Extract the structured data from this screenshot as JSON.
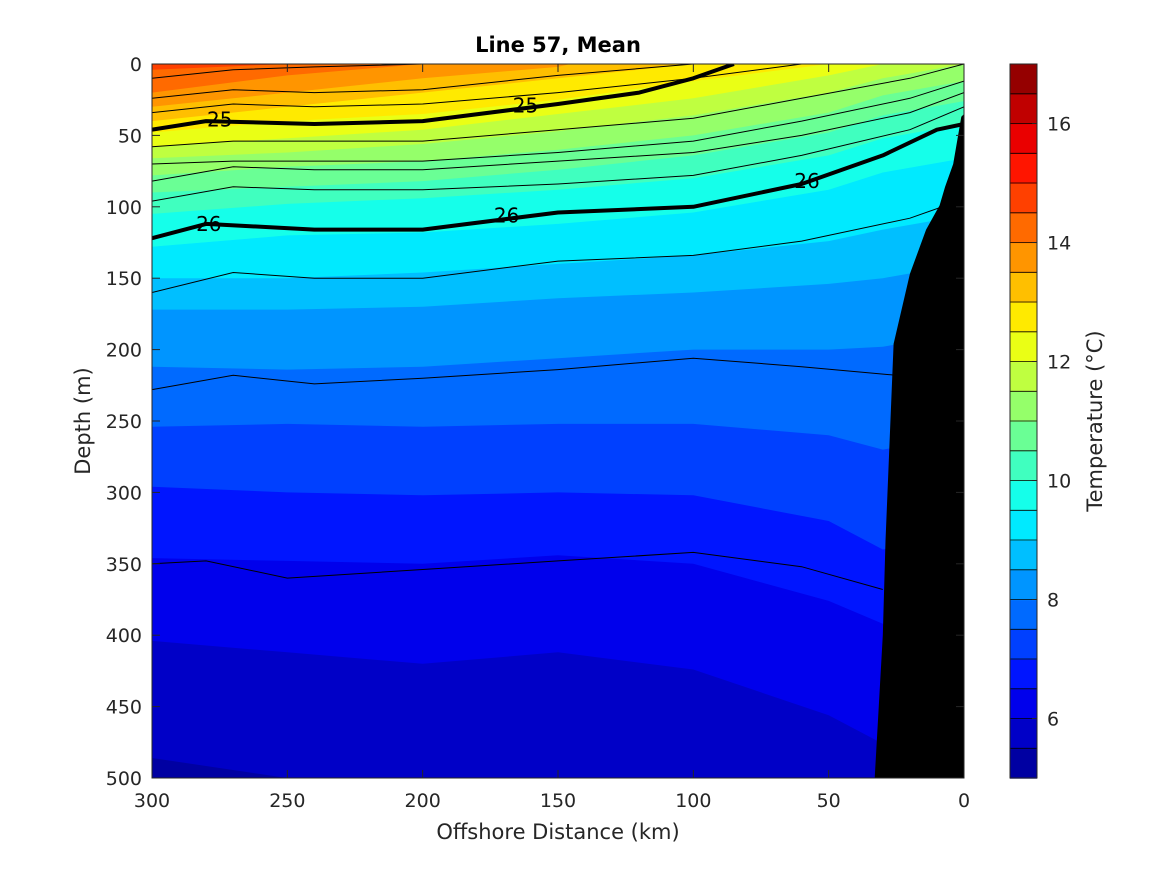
{
  "chart_data": {
    "type": "contourf",
    "title": "Line 57, Mean",
    "xlabel": "Offshore Distance (km)",
    "ylabel": "Depth (m)",
    "colorbar_label": "Temperature (°C)",
    "x_reversed": true,
    "y_reversed": true,
    "xlim": [
      0,
      300
    ],
    "ylim": [
      0,
      500
    ],
    "xticks": [
      300,
      250,
      200,
      150,
      100,
      50,
      0
    ],
    "xticklabels": [
      "300",
      "250",
      "200",
      "150",
      "100",
      "50",
      "0"
    ],
    "yticks": [
      0,
      50,
      100,
      150,
      200,
      250,
      300,
      350,
      400,
      450,
      500
    ],
    "yticklabels": [
      "0",
      "50",
      "100",
      "150",
      "200",
      "250",
      "300",
      "350",
      "400",
      "450",
      "500"
    ],
    "colorbar": {
      "range": [
        5,
        17
      ],
      "ticks": [
        6,
        8,
        10,
        12,
        14,
        16
      ],
      "ticklabels": [
        "6",
        "8",
        "10",
        "12",
        "14",
        "16"
      ],
      "levels": [
        5,
        5.5,
        6,
        6.5,
        7,
        7.5,
        8,
        8.5,
        9,
        9.5,
        10,
        10.5,
        11,
        11.5,
        12,
        12.5,
        13,
        13.5,
        14,
        14.5,
        15,
        15.5,
        16,
        16.5,
        17
      ]
    },
    "x_samples": [
      300,
      250,
      200,
      150,
      100,
      50,
      30
    ],
    "isotherms": [
      {
        "level": 14.5,
        "depth": [
          4,
          0,
          null,
          null,
          null,
          null,
          null
        ]
      },
      {
        "level": 14,
        "depth": [
          20,
          8,
          0,
          null,
          null,
          null,
          null
        ]
      },
      {
        "level": 13.5,
        "depth": [
          30,
          20,
          10,
          2,
          null,
          null,
          null
        ]
      },
      {
        "level": 13,
        "depth": [
          40,
          30,
          20,
          10,
          0,
          null,
          null
        ]
      },
      {
        "level": 12.5,
        "depth": [
          48,
          40,
          35,
          25,
          12,
          0,
          null
        ]
      },
      {
        "level": 12,
        "depth": [
          58,
          52,
          46,
          35,
          24,
          8,
          0
        ]
      },
      {
        "level": 11.5,
        "depth": [
          66,
          62,
          56,
          47,
          36,
          20,
          10
        ]
      },
      {
        "level": 11,
        "depth": [
          78,
          72,
          68,
          60,
          50,
          34,
          22
        ]
      },
      {
        "level": 10.5,
        "depth": [
          90,
          86,
          82,
          74,
          64,
          48,
          36
        ]
      },
      {
        "level": 10,
        "depth": [
          105,
          98,
          94,
          88,
          80,
          64,
          52
        ]
      },
      {
        "level": 9.5,
        "depth": [
          128,
          120,
          118,
          112,
          104,
          88,
          76
        ]
      },
      {
        "level": 9,
        "depth": [
          150,
          150,
          146,
          140,
          134,
          124,
          116
        ]
      },
      {
        "level": 8.5,
        "depth": [
          172,
          172,
          170,
          164,
          160,
          154,
          150
        ]
      },
      {
        "level": 8,
        "depth": [
          212,
          214,
          212,
          206,
          200,
          200,
          198
        ]
      },
      {
        "level": 7.5,
        "depth": [
          254,
          252,
          254,
          252,
          252,
          260,
          270
        ]
      },
      {
        "level": 7,
        "depth": [
          296,
          300,
          302,
          300,
          302,
          320,
          340
        ]
      },
      {
        "level": 6.5,
        "depth": [
          346,
          348,
          350,
          344,
          350,
          376,
          392
        ]
      },
      {
        "level": 6,
        "depth": [
          404,
          412,
          420,
          412,
          424,
          456,
          476
        ]
      },
      {
        "level": 5.5,
        "depth": [
          486,
          500,
          500,
          500,
          500,
          500,
          500
        ]
      }
    ],
    "thin_contours": [
      {
        "x": [
          300,
          270,
          240,
          200,
          150,
          100,
          60,
          30
        ],
        "depth": [
          10,
          4,
          2,
          0,
          null,
          null,
          null,
          null
        ]
      },
      {
        "x": [
          300,
          270,
          240,
          200,
          150,
          100,
          60,
          20
        ],
        "depth": [
          24,
          18,
          20,
          18,
          8,
          0,
          null,
          null
        ]
      },
      {
        "x": [
          300,
          270,
          240,
          200,
          150,
          100,
          60,
          20
        ],
        "depth": [
          34,
          28,
          30,
          28,
          20,
          10,
          0,
          null
        ]
      },
      {
        "x": [
          300,
          270,
          240,
          200,
          150,
          100,
          60,
          20,
          0
        ],
        "depth": [
          58,
          54,
          54,
          54,
          46,
          38,
          24,
          10,
          0
        ]
      },
      {
        "x": [
          300,
          270,
          240,
          200,
          150,
          100,
          60,
          20,
          0
        ],
        "depth": [
          70,
          68,
          68,
          68,
          62,
          54,
          40,
          24,
          12
        ]
      },
      {
        "x": [
          300,
          270,
          240,
          200,
          150,
          100,
          60,
          20,
          0
        ],
        "depth": [
          82,
          72,
          74,
          74,
          68,
          62,
          50,
          34,
          20
        ]
      },
      {
        "x": [
          300,
          270,
          240,
          200,
          150,
          100,
          60,
          20,
          0
        ],
        "depth": [
          96,
          86,
          88,
          88,
          84,
          78,
          64,
          46,
          30
        ]
      },
      {
        "x": [
          300,
          270,
          240,
          200,
          150,
          100,
          60,
          20,
          5
        ],
        "depth": [
          160,
          146,
          150,
          150,
          138,
          134,
          124,
          108,
          98
        ]
      },
      {
        "x": [
          300,
          270,
          240,
          200,
          150,
          100,
          60,
          25
        ],
        "depth": [
          228,
          218,
          224,
          220,
          214,
          206,
          212,
          218
        ]
      },
      {
        "x": [
          300,
          280,
          250,
          200,
          150,
          100,
          60,
          30
        ],
        "depth": [
          350,
          348,
          360,
          354,
          348,
          342,
          352,
          368
        ]
      }
    ],
    "bold_contours": [
      {
        "label": "25",
        "x": [
          300,
          280,
          240,
          200,
          150,
          120,
          100,
          85
        ],
        "depth": [
          46,
          40,
          42,
          40,
          28,
          20,
          10,
          0
        ]
      },
      {
        "label": "26",
        "x": [
          300,
          280,
          240,
          200,
          150,
          100,
          60,
          30,
          10,
          0
        ],
        "depth": [
          122,
          112,
          116,
          116,
          104,
          100,
          84,
          64,
          46,
          42
        ]
      }
    ],
    "contour_labels": [
      {
        "text": "25",
        "x": 275,
        "y": 39
      },
      {
        "text": "25",
        "x": 162,
        "y": 29
      },
      {
        "text": "26",
        "x": 279,
        "y": 112
      },
      {
        "text": "26",
        "x": 169,
        "y": 106
      },
      {
        "text": "26",
        "x": 58,
        "y": 82
      }
    ],
    "bathymetry": {
      "x": [
        33,
        30,
        29,
        26,
        20,
        14,
        9,
        7,
        4,
        1,
        0
      ],
      "depth": [
        500,
        400,
        334,
        196,
        147,
        116,
        99,
        86,
        70,
        37,
        35
      ]
    }
  }
}
